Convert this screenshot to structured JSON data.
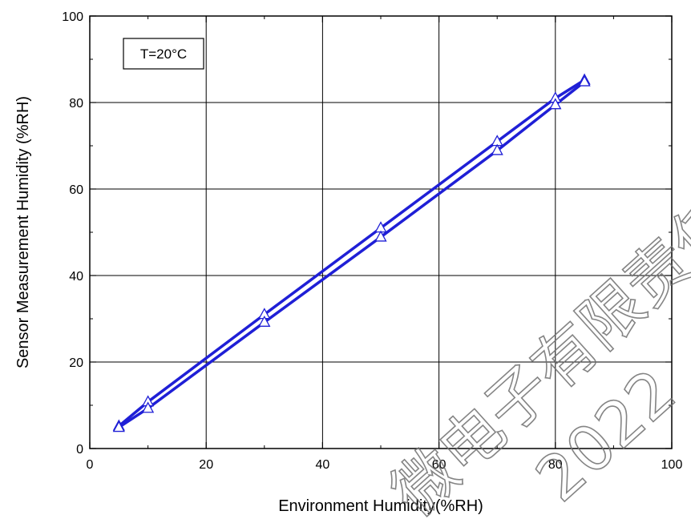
{
  "chart_data": {
    "type": "line",
    "title": "",
    "xlabel": "Environment Humidity(%RH)",
    "ylabel": "Sensor Measurement Humidity (%RH)",
    "xlim": [
      0,
      100
    ],
    "ylim": [
      0,
      100
    ],
    "xticks": [
      0,
      20,
      40,
      60,
      80,
      100
    ],
    "yticks": [
      0,
      20,
      40,
      60,
      80,
      100
    ],
    "grid": true,
    "legend": "none",
    "annotation": "T=20°C",
    "marker": "triangle",
    "series_color": "#1f1fd6",
    "series": [
      {
        "x": [
          5,
          10,
          30,
          50,
          70,
          80,
          85
        ],
        "y": [
          5.2,
          10.8,
          31.0,
          51.0,
          71.0,
          81.0,
          85.2
        ]
      },
      {
        "x": [
          5,
          10,
          30,
          50,
          70,
          80,
          85
        ],
        "y": [
          4.9,
          9.3,
          29.2,
          48.9,
          68.9,
          79.5,
          84.8
        ]
      }
    ]
  },
  "watermark": {
    "line1": "微电子有限责任",
    "line2": "2022"
  }
}
